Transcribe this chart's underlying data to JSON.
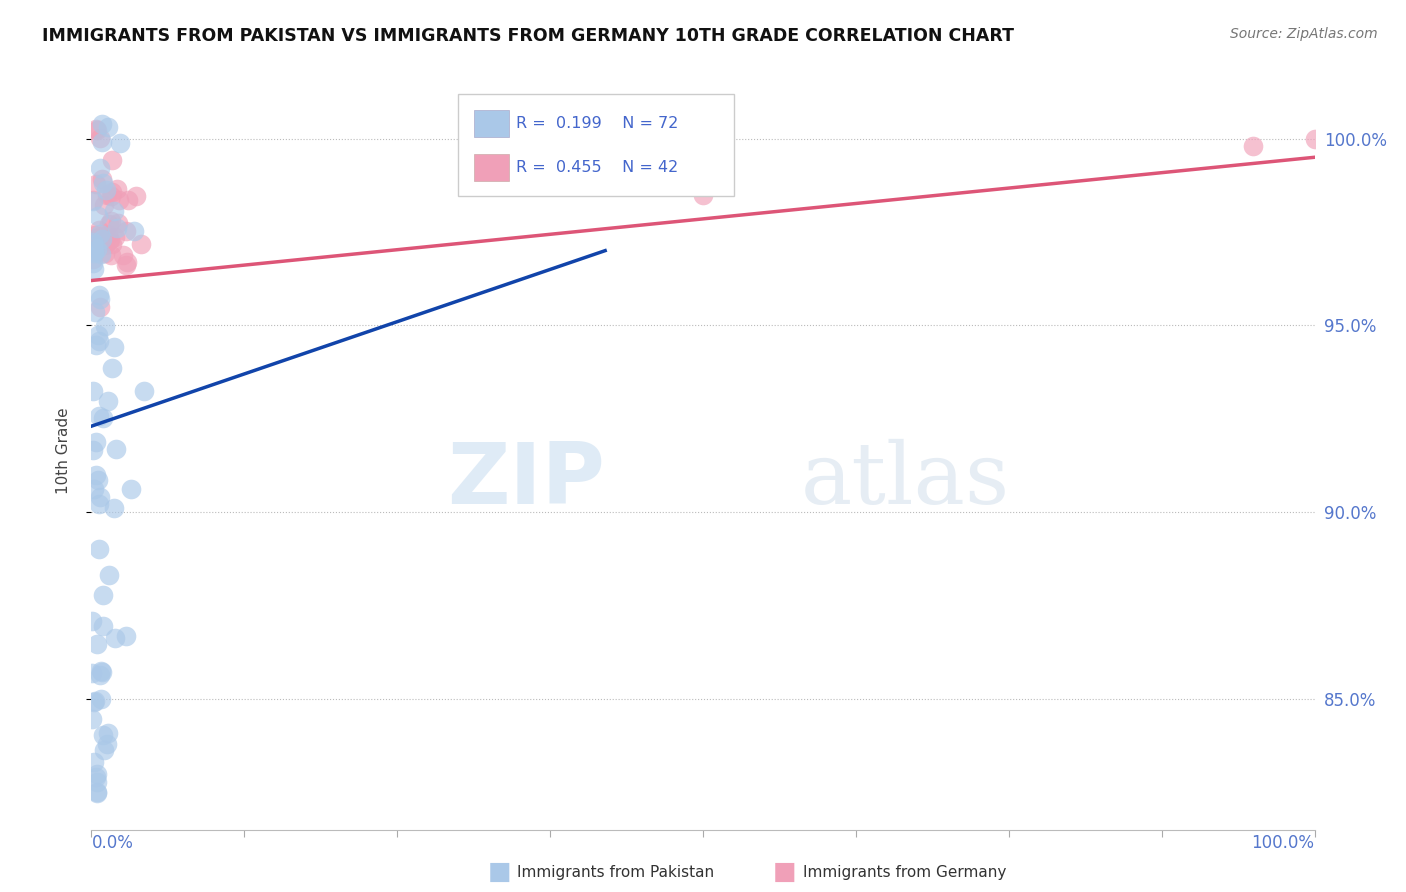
{
  "title": "IMMIGRANTS FROM PAKISTAN VS IMMIGRANTS FROM GERMANY 10TH GRADE CORRELATION CHART",
  "source": "Source: ZipAtlas.com",
  "ylabel": "10th Grade",
  "x_min": 0.0,
  "x_max": 1.0,
  "y_min": 81.5,
  "y_max": 101.8,
  "y_ticks": [
    85.0,
    90.0,
    95.0,
    100.0
  ],
  "R_pakistan": 0.199,
  "N_pakistan": 72,
  "R_germany": 0.455,
  "N_germany": 42,
  "color_pakistan": "#aac8e8",
  "color_germany": "#f0a0b8",
  "line_color_pakistan": "#1144aa",
  "line_color_germany": "#dd5577",
  "watermark_zip": "ZIP",
  "watermark_atlas": "atlas",
  "legend_R_pakistan": "0.199",
  "legend_N_pakistan": "72",
  "legend_R_germany": "0.455",
  "legend_N_germany": "42",
  "pk_line_x0": 0.0,
  "pk_line_y0": 92.3,
  "pk_line_x1": 0.42,
  "pk_line_y1": 97.0,
  "gm_line_x0": 0.0,
  "gm_line_y0": 96.2,
  "gm_line_x1": 1.0,
  "gm_line_y1": 99.5
}
